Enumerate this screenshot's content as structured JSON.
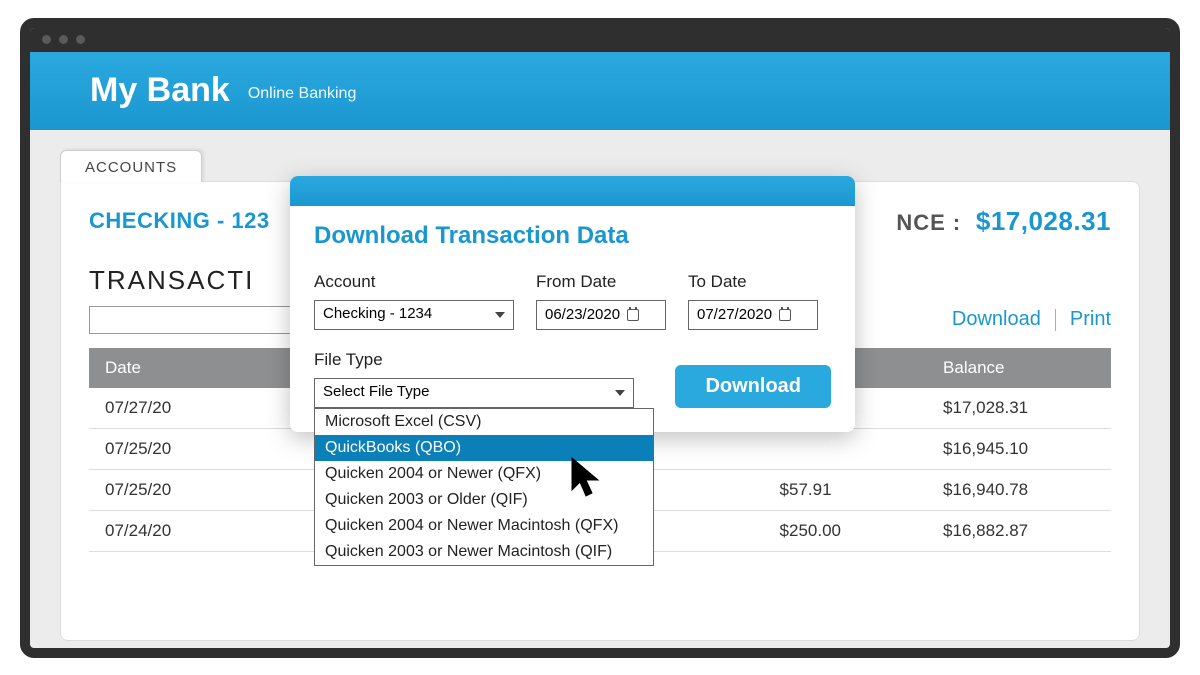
{
  "banner": {
    "brand": "My Bank",
    "subtitle": "Online Banking"
  },
  "tab": {
    "label": "ACCOUNTS"
  },
  "account": {
    "name": "CHECKING - 123",
    "balance_label": "NCE :",
    "balance": "$17,028.31"
  },
  "section": {
    "title": "TRANSACTI"
  },
  "actions": {
    "download": "Download",
    "print": "Print"
  },
  "table": {
    "headers": {
      "date": "Date",
      "balance": "Balance"
    },
    "rows": [
      {
        "date": "07/27/20",
        "amount": "",
        "balance": "$17,028.31"
      },
      {
        "date": "07/25/20",
        "amount": "",
        "balance": "$16,945.10"
      },
      {
        "date": "07/25/20",
        "amount": "$57.91",
        "balance": "$16,940.78"
      },
      {
        "date": "07/24/20",
        "amount": "$250.00",
        "balance": "$16,882.87"
      }
    ]
  },
  "modal": {
    "title": "Download Transaction Data",
    "labels": {
      "account": "Account",
      "from": "From Date",
      "to": "To Date",
      "filetype": "File Type"
    },
    "account_value": "Checking - 1234",
    "from_value": "06/23/2020",
    "to_value": "07/27/2020",
    "filetype_placeholder": "Select File Type",
    "download_btn": "Download",
    "options": [
      "Microsoft Excel  (CSV)",
      "QuickBooks  (QBO)",
      "Quicken 2004 or Newer  (QFX)",
      "Quicken 2003 or Older  (QIF)",
      "Quicken 2004 or Newer Macintosh  (QFX)",
      "Quicken 2003 or Newer Macintosh  (QIF)"
    ],
    "highlight_index": 1
  },
  "colors": {
    "accent": "#1a97cf",
    "header_gray": "#8d8f91",
    "frame": "#2f2f2f"
  }
}
